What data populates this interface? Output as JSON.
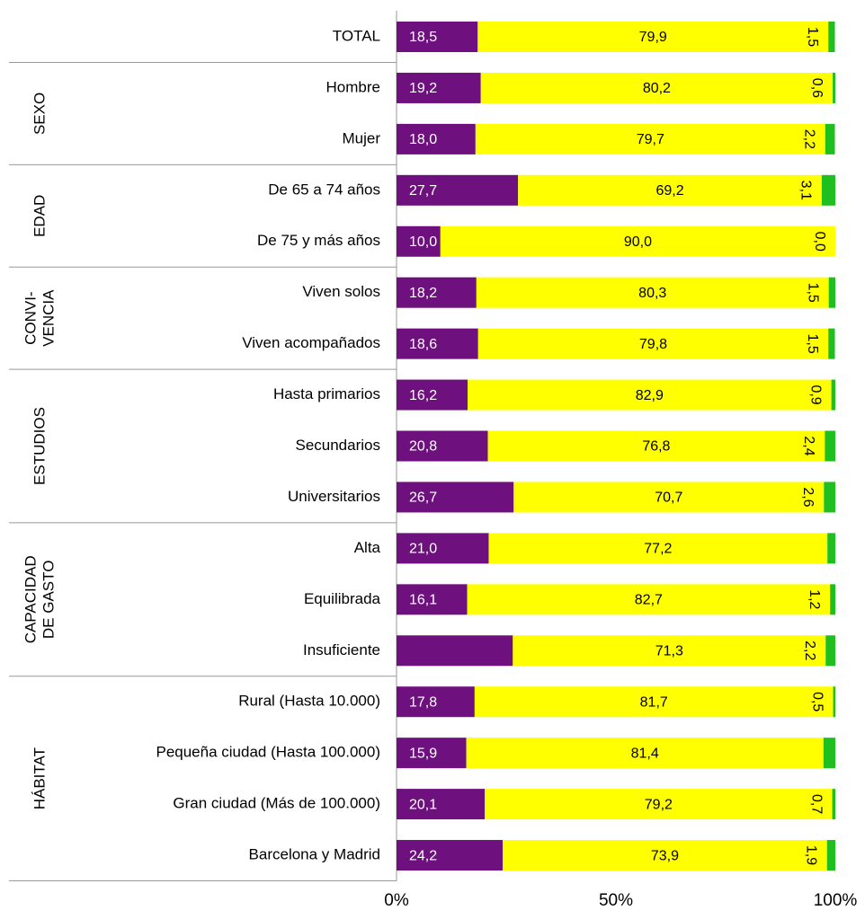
{
  "chart_data": {
    "type": "stacked-barh",
    "categories": [
      "TOTAL",
      "Hombre",
      "Mujer",
      "De 65 a 74 años",
      "De 75 y más años",
      "Viven solos",
      "Viven acompañados",
      "Hasta primarios",
      "Secundarios",
      "Universitarios",
      "Alta",
      "Equilibrada",
      "Insuficiente",
      "Rural (Hasta 10.000)",
      "Pequeña ciudad (Hasta 100.000)",
      "Gran ciudad (Más de 100.000)",
      "Barcelona y Madrid"
    ],
    "groups": [
      {
        "label": [
          "SEXO"
        ],
        "span": 2
      },
      {
        "label": [
          "EDAD"
        ],
        "span": 2
      },
      {
        "label": [
          "CONVI-",
          "VENCIA"
        ],
        "span": 2
      },
      {
        "label": [
          "ESTUDIOS"
        ],
        "span": 3
      },
      {
        "label": [
          "CAPACIDAD",
          "DE GASTO"
        ],
        "span": 3
      },
      {
        "label": [
          "HÁBITAT"
        ],
        "span": 4
      }
    ],
    "series": [
      {
        "color": "#6e117e",
        "values": [
          18.5,
          19.2,
          18.0,
          27.7,
          10.0,
          18.2,
          18.6,
          16.2,
          20.8,
          26.7,
          21.0,
          16.1,
          26.5,
          17.8,
          15.9,
          20.1,
          24.2
        ],
        "value_labels": [
          "18,5",
          "19,2",
          "18,0",
          "27,7",
          "10,0",
          "18,2",
          "18,6",
          "16,2",
          "20,8",
          "26,7",
          "21,0",
          "16,1",
          null,
          "17,8",
          "15,9",
          "20,1",
          "24,2"
        ]
      },
      {
        "color": "#ffff00",
        "values": [
          79.9,
          80.2,
          79.7,
          69.2,
          90.0,
          80.3,
          79.8,
          82.9,
          76.8,
          70.7,
          77.2,
          82.7,
          71.3,
          81.7,
          81.4,
          79.2,
          73.9
        ],
        "value_labels": [
          "79,9",
          "80,2",
          "79,7",
          "69,2",
          "90,0",
          "80,3",
          "79,8",
          "82,9",
          "76,8",
          "70,7",
          "77,2",
          "82,7",
          "71,3",
          "81,7",
          "81,4",
          "79,2",
          "73,9"
        ]
      },
      {
        "color": "#1fbf1f",
        "values": [
          1.5,
          0.6,
          2.2,
          3.1,
          0.0,
          1.5,
          1.5,
          0.9,
          2.4,
          2.6,
          1.8,
          1.2,
          2.2,
          0.5,
          2.7,
          0.7,
          1.9
        ],
        "value_labels": [
          "1,5",
          "0,6",
          "2,2",
          "3,1",
          "0,0",
          "1,5",
          "1,5",
          "0,9",
          "2,4",
          "2,6",
          null,
          "1,2",
          "2,2",
          "0,5",
          null,
          "0,7",
          "1,9"
        ]
      }
    ],
    "xlim": [
      0,
      100
    ],
    "xticks": [
      {
        "value": 0,
        "label": "0%"
      },
      {
        "value": 50,
        "label": "50%"
      },
      {
        "value": 100,
        "label": "100%"
      }
    ]
  }
}
